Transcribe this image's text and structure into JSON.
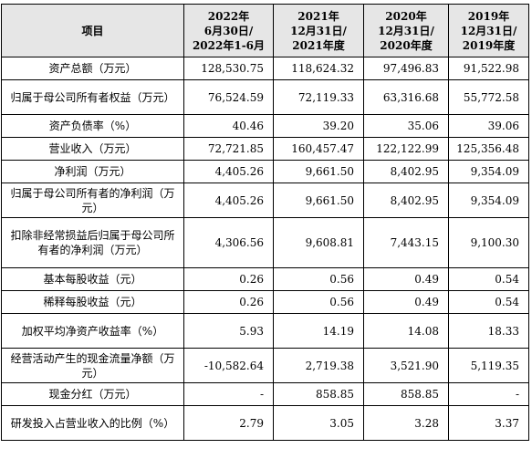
{
  "table": {
    "header": {
      "item": "项目",
      "col1": [
        "2022年",
        "6月30日/",
        "2022年1-6月"
      ],
      "col2": [
        "2021年",
        "12月31日/",
        "2021年度"
      ],
      "col3": [
        "2020年",
        "12月31日/",
        "2020年度"
      ],
      "col4": [
        "2019年",
        "12月31日/",
        "2019年度"
      ]
    },
    "rows": [
      {
        "label": "资产总额（万元）",
        "values": [
          "128,530.75",
          "118,624.32",
          "97,496.83",
          "91,522.98"
        ]
      },
      {
        "label": "归属于母公司所有者权益（万元）",
        "values": [
          "76,524.59",
          "72,119.33",
          "63,316.68",
          "55,772.58"
        ]
      },
      {
        "label": "资产负债率（%）",
        "values": [
          "40.46",
          "39.20",
          "35.06",
          "39.06"
        ]
      },
      {
        "label": "营业收入（万元）",
        "values": [
          "72,721.85",
          "160,457.47",
          "122,122.99",
          "125,356.48"
        ]
      },
      {
        "label": "净利润（万元）",
        "values": [
          "4,405.26",
          "9,661.50",
          "8,402.95",
          "9,354.09"
        ]
      },
      {
        "label": "归属于母公司所有者的净利润（万元）",
        "values": [
          "4,405.26",
          "9,661.50",
          "8,402.95",
          "9,354.09"
        ]
      },
      {
        "label": "扣除非经常损益后归属于母公司所有者的净利润（万元）",
        "values": [
          "4,306.56",
          "9,608.81",
          "7,443.15",
          "9,100.30"
        ]
      },
      {
        "label": "基本每股收益（元）",
        "values": [
          "0.26",
          "0.56",
          "0.49",
          "0.54"
        ]
      },
      {
        "label": "稀释每股收益（元）",
        "values": [
          "0.26",
          "0.56",
          "0.49",
          "0.54"
        ]
      },
      {
        "label": "加权平均净资产收益率（%）",
        "values": [
          "5.93",
          "14.19",
          "14.08",
          "18.33"
        ]
      },
      {
        "label": "经营活动产生的现金流量净额（万元）",
        "values": [
          "-10,582.64",
          "2,719.38",
          "3,521.90",
          "5,119.35"
        ]
      },
      {
        "label": "现金分红（万元）",
        "values": [
          "-",
          "858.85",
          "858.85",
          "-"
        ]
      },
      {
        "label": "研发投入占营业收入的比例（%）",
        "values": [
          "2.79",
          "3.05",
          "3.28",
          "3.37"
        ]
      }
    ]
  }
}
